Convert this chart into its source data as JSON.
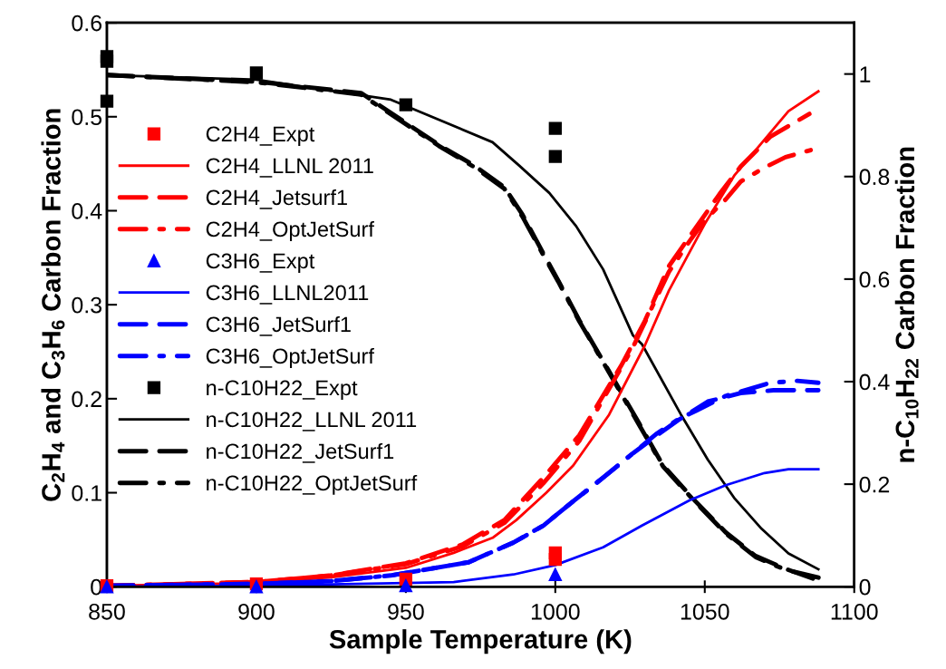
{
  "chart_data": {
    "type": "line",
    "xlabel": "Sample Temperature (K)",
    "ylabel": "C$_{2}$H$_{4}$ and C$_{3}$H$_{6}$ Carbon Fraction",
    "y2label": "n-C$_{10}$H$_{22}$ Carbon Fraction",
    "xlim": [
      850,
      1100
    ],
    "xticks": [
      850,
      900,
      950,
      1000,
      1050,
      1100
    ],
    "ylim": [
      0,
      0.6
    ],
    "yticks": [
      0,
      0.1,
      0.2,
      0.3,
      0.4,
      0.5,
      0.6
    ],
    "y2lim": [
      0,
      1.1
    ],
    "y2ticks": [
      0,
      0.2,
      0.4,
      0.6,
      0.8,
      1
    ],
    "grid": false,
    "legend": "left",
    "series": [
      {
        "name": "C2H4_Expt",
        "type": "scatter",
        "marker": "square",
        "color": "#ff0000",
        "x": [
          850,
          900,
          950,
          1000,
          1000
        ],
        "values": [
          0.001,
          0.003,
          0.008,
          0.036,
          0.029
        ]
      },
      {
        "name": "C2H4_LLNL 2011",
        "line_style": "solid",
        "color": "#ff0000",
        "x": [
          850,
          900,
          925,
          950,
          966,
          979,
          987,
          997,
          1006,
          1018,
          1030,
          1038,
          1050,
          1060,
          1069,
          1078,
          1088
        ],
        "values": [
          0.001,
          0.004,
          0.01,
          0.02,
          0.036,
          0.052,
          0.071,
          0.1,
          0.129,
          0.183,
          0.257,
          0.315,
          0.386,
          0.438,
          0.472,
          0.506,
          0.527
        ]
      },
      {
        "name": "C2H4_Jetsurf1",
        "line_style": "dashed",
        "color": "#ff0000",
        "x": [
          850,
          900,
          925,
          950,
          969,
          983,
          996,
          1008,
          1022,
          1030,
          1038,
          1045,
          1055,
          1062,
          1072,
          1085
        ],
        "values": [
          0.001,
          0.005,
          0.012,
          0.025,
          0.045,
          0.071,
          0.116,
          0.161,
          0.235,
          0.283,
          0.341,
          0.373,
          0.418,
          0.447,
          0.479,
          0.503
        ]
      },
      {
        "name": "C2H4_OptJetSurf",
        "line_style": "dashdot",
        "color": "#ff0000",
        "x": [
          850,
          900,
          925,
          950,
          969,
          983,
          996,
          1008,
          1026,
          1038,
          1045,
          1050,
          1057,
          1062,
          1070,
          1077,
          1086
        ],
        "values": [
          0.001,
          0.005,
          0.012,
          0.024,
          0.043,
          0.068,
          0.11,
          0.155,
          0.255,
          0.335,
          0.368,
          0.39,
          0.412,
          0.431,
          0.446,
          0.457,
          0.465
        ]
      },
      {
        "name": "C3H6_Expt",
        "type": "scatter",
        "marker": "triangle",
        "color": "#0000ff",
        "x": [
          850,
          900,
          950,
          1000
        ],
        "values": [
          0,
          0,
          0.001,
          0.013
        ]
      },
      {
        "name": "C3H6_LLNL2011",
        "line_style": "solid",
        "color": "#0000ff",
        "x": [
          850,
          900,
          950,
          966,
          986,
          1000,
          1016,
          1029,
          1045,
          1057,
          1070,
          1078,
          1088
        ],
        "values": [
          0,
          0.001,
          0.004,
          0.005,
          0.013,
          0.023,
          0.042,
          0.065,
          0.092,
          0.108,
          0.121,
          0.125,
          0.125
        ]
      },
      {
        "name": "C3H6_JetSurf1",
        "line_style": "dashed",
        "color": "#0000ff",
        "x": [
          850,
          900,
          925,
          945,
          971,
          986,
          996,
          1006,
          1016,
          1026,
          1034,
          1041,
          1051,
          1062,
          1073,
          1088
        ],
        "values": [
          0.001,
          0.003,
          0.006,
          0.012,
          0.026,
          0.047,
          0.065,
          0.091,
          0.116,
          0.142,
          0.161,
          0.177,
          0.197,
          0.206,
          0.209,
          0.209
        ]
      },
      {
        "name": "C3H6_OptJetSurf",
        "line_style": "dashdot",
        "color": "#0000ff",
        "x": [
          850,
          900,
          925,
          945,
          971,
          986,
          996,
          1006,
          1016,
          1026,
          1034,
          1041,
          1047,
          1057,
          1072,
          1081,
          1088
        ],
        "values": [
          0.001,
          0.003,
          0.006,
          0.012,
          0.026,
          0.047,
          0.065,
          0.091,
          0.116,
          0.142,
          0.163,
          0.178,
          0.187,
          0.203,
          0.217,
          0.219,
          0.217
        ]
      },
      {
        "name": "n-C10H22_Expt",
        "type": "scatter",
        "marker": "square",
        "axis": "y2",
        "color": "#000000",
        "x": [
          850,
          850,
          850,
          900,
          950,
          1000,
          1000
        ],
        "values": [
          1.034,
          1.025,
          0.947,
          1.002,
          0.94,
          0.894,
          0.839
        ]
      },
      {
        "name": "n-C10H22_LLNL 2011",
        "line_style": "solid",
        "axis": "y2",
        "color": "#000000",
        "x": [
          850,
          900,
          945,
          979,
          988,
          998,
          1007,
          1016,
          1026,
          1029,
          1042,
          1051,
          1060,
          1069,
          1078,
          1088
        ],
        "values": [
          0.998,
          0.989,
          0.95,
          0.867,
          0.821,
          0.768,
          0.703,
          0.619,
          0.49,
          0.473,
          0.336,
          0.248,
          0.172,
          0.113,
          0.065,
          0.034
        ]
      },
      {
        "name": "n-C10H22_JetSurf1",
        "line_style": "dashed",
        "axis": "y2",
        "color": "#000000",
        "x": [
          850,
          900,
          935,
          961,
          973,
          983,
          989,
          996,
          1001,
          1008,
          1016,
          1028,
          1036,
          1047,
          1057,
          1067,
          1077,
          1088
        ],
        "values": [
          0.998,
          0.985,
          0.963,
          0.862,
          0.821,
          0.779,
          0.726,
          0.65,
          0.597,
          0.52,
          0.44,
          0.319,
          0.237,
          0.166,
          0.106,
          0.06,
          0.035,
          0.012
        ]
      },
      {
        "name": "n-C10H22_OptJetSurf",
        "line_style": "dashdot",
        "axis": "y2",
        "color": "#000000",
        "x": [
          850,
          900,
          935,
          961,
          973,
          983,
          989,
          996,
          1001,
          1008,
          1016,
          1028,
          1036,
          1047,
          1057,
          1067,
          1077,
          1090
        ],
        "values": [
          0.998,
          0.984,
          0.96,
          0.86,
          0.818,
          0.776,
          0.722,
          0.647,
          0.595,
          0.518,
          0.438,
          0.316,
          0.235,
          0.164,
          0.104,
          0.058,
          0.033,
          0.015
        ]
      }
    ]
  }
}
